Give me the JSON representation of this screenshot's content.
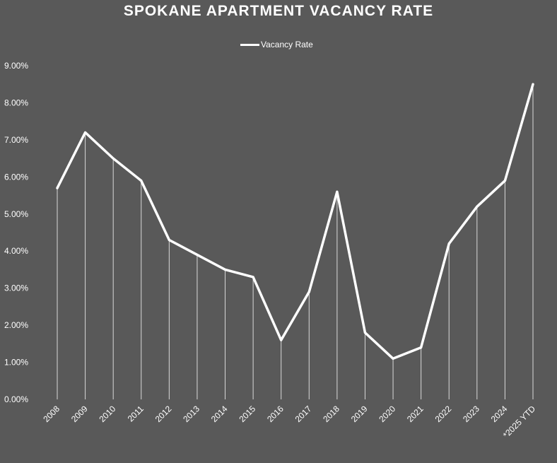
{
  "chart_data": {
    "type": "line",
    "title": "SPOKANE APARTMENT VACANCY RATE",
    "xlabel": "",
    "ylabel": "",
    "categories": [
      "2008",
      "2009",
      "2010",
      "2011",
      "2012",
      "2013",
      "2014",
      "2015",
      "2016",
      "2017",
      "2018",
      "2019",
      "2020",
      "2021",
      "2022",
      "2023",
      "2024",
      "*2025 YTD"
    ],
    "series": [
      {
        "name": "Vacancy Rate",
        "values": [
          5.7,
          7.2,
          6.5,
          5.9,
          4.3,
          3.9,
          3.5,
          3.3,
          1.6,
          2.9,
          5.6,
          1.8,
          1.1,
          1.4,
          4.2,
          5.2,
          5.9,
          8.5
        ],
        "color": "#ffffff"
      }
    ],
    "ylim": [
      0,
      9
    ],
    "yticks": [
      "0.00%",
      "1.00%",
      "2.00%",
      "3.00%",
      "4.00%",
      "5.00%",
      "6.00%",
      "7.00%",
      "8.00%",
      "9.00%"
    ],
    "drop_lines": true,
    "grid": false,
    "legend_position": "top-center",
    "background_color": "#595959"
  }
}
